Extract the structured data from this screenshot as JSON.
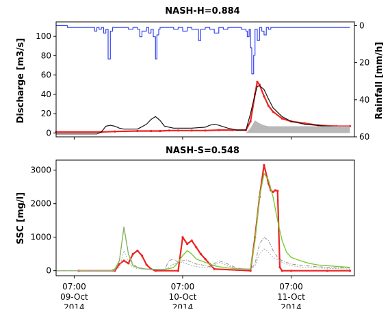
{
  "chart_data": [
    {
      "type": "line",
      "title": "NASH-H=0.884",
      "ylabel": "Discharge [m3/s]",
      "ylabel_right": "Rainfall [mm/h]",
      "ylim": [
        -4,
        115
      ],
      "yticks": [
        0,
        20,
        40,
        60,
        80,
        100
      ],
      "ylim_right": [
        60,
        -2
      ],
      "yticks_right": [
        0,
        20,
        40,
        60
      ],
      "xlim": [
        0,
        66
      ],
      "grid": false,
      "colors": {
        "rainfall": "#3344ee",
        "observed": "#ee2222",
        "simulated": "#111111",
        "baseflow": "#b8b8b8"
      },
      "series": [
        {
          "name": "",
          "role": "rainfall",
          "axis": "right",
          "x": [
            0,
            2,
            2.5,
            8,
            8.5,
            9,
            9.5,
            10,
            10.5,
            11,
            11.5,
            12,
            12.5,
            15,
            16,
            17,
            18,
            18.5,
            19,
            19.5,
            20,
            20.5,
            21,
            21.5,
            22,
            22.3,
            22.7,
            23,
            24,
            26,
            27,
            28,
            29,
            30,
            31,
            31.5,
            32,
            33,
            34,
            35,
            36,
            37,
            38,
            40,
            41,
            42,
            42.3,
            42.7,
            43,
            43.3,
            43.7,
            44,
            44.5,
            45,
            45.5,
            46,
            46.5,
            47,
            47.5,
            48,
            50,
            55,
            60,
            65
          ],
          "y": [
            0,
            0,
            1,
            1,
            3,
            1,
            2,
            1,
            4,
            2,
            18,
            3,
            1,
            1,
            2,
            1,
            2,
            6,
            3,
            3,
            1,
            4,
            2,
            6,
            18,
            5,
            2,
            1,
            1,
            2,
            1,
            3,
            1,
            2,
            2,
            8,
            2,
            1,
            2,
            4,
            1,
            2,
            1,
            1,
            2,
            3,
            6,
            2,
            12,
            26,
            16,
            2,
            8,
            1,
            3,
            5,
            1,
            2,
            1,
            1,
            1,
            1,
            1,
            1
          ]
        },
        {
          "name": "",
          "role": "observed",
          "axis": "left",
          "x": [
            0,
            10,
            13,
            18,
            21,
            23,
            25,
            27,
            30,
            33,
            36,
            39,
            42,
            43,
            44,
            44.5,
            45,
            46,
            47,
            48,
            50,
            52,
            55,
            58,
            62,
            65
          ],
          "y": [
            1,
            1,
            1.5,
            2,
            2,
            2,
            2.5,
            2.5,
            2.5,
            2.5,
            3,
            3,
            3,
            12,
            40,
            53,
            50,
            38,
            28,
            22,
            15,
            12,
            10,
            8,
            7,
            7
          ]
        },
        {
          "name": "",
          "role": "simulated",
          "axis": "left",
          "x": [
            0,
            9,
            10,
            11,
            12,
            13,
            14,
            15,
            18,
            20,
            21,
            22,
            23,
            24,
            26,
            30,
            33,
            34,
            35,
            36,
            38,
            40,
            42,
            43,
            44,
            44.5,
            45,
            46,
            47,
            48,
            50,
            52,
            55,
            60,
            65
          ],
          "y": [
            -1,
            -1,
            1,
            7,
            8,
            7,
            5,
            4,
            4,
            9,
            14,
            17,
            13,
            7,
            5,
            5,
            6,
            8,
            9,
            8,
            5,
            3,
            3,
            20,
            40,
            48,
            49,
            45,
            35,
            26,
            17,
            12,
            9,
            7,
            6
          ]
        },
        {
          "name": "",
          "role": "baseflow",
          "axis": "left",
          "x": [
            0,
            42,
            43,
            44,
            45,
            46,
            47,
            48,
            50,
            55,
            65
          ],
          "y": [
            0,
            0,
            5,
            13,
            10,
            8,
            7,
            7,
            7,
            7,
            7
          ]
        }
      ]
    },
    {
      "type": "line",
      "title": "NASH-S=0.548",
      "ylabel": "SSC [mg/l]",
      "ylim": [
        -150,
        3300
      ],
      "yticks": [
        0,
        1000,
        2000,
        3000
      ],
      "xlim": [
        0,
        66
      ],
      "xticks": [
        {
          "x": 4,
          "label": [
            "07:00",
            "09-Oct",
            "2014"
          ]
        },
        {
          "x": 28,
          "label": [
            "07:00",
            "10-Oct",
            "2014"
          ]
        },
        {
          "x": 52,
          "label": [
            "07:00",
            "11-Oct",
            "2014"
          ]
        }
      ],
      "grid": false,
      "colors": {
        "observed": "#ee2222",
        "model_a": "#77cc33",
        "model_b": "#999999",
        "model_c": "#aaaaaa"
      },
      "series": [
        {
          "name": "",
          "role": "observed",
          "x": [
            5,
            13,
            14,
            15,
            16,
            17,
            18,
            19,
            20,
            21,
            22,
            27,
            28,
            29,
            30,
            31,
            32,
            33,
            34,
            35,
            43,
            44,
            45,
            46,
            47,
            47.5,
            48,
            48.5,
            49,
            49.5,
            50,
            52,
            60,
            65
          ],
          "y": [
            0,
            0,
            200,
            300,
            220,
            500,
            600,
            450,
            180,
            50,
            0,
            0,
            1000,
            800,
            900,
            700,
            500,
            350,
            200,
            50,
            0,
            1000,
            2200,
            3150,
            2600,
            2400,
            2350,
            2400,
            2380,
            100,
            0,
            0,
            0,
            0
          ]
        },
        {
          "name": "",
          "role": "model_a",
          "x": [
            0,
            12,
            13,
            14,
            15,
            16,
            17,
            18,
            19,
            20,
            22,
            24,
            25,
            26,
            27,
            28,
            29,
            30,
            31,
            32,
            33,
            34,
            35,
            36,
            38,
            40,
            42,
            43,
            44,
            45,
            46,
            47,
            48,
            49,
            50,
            51,
            52,
            54,
            56,
            58,
            60,
            62,
            65
          ],
          "y": [
            0,
            0,
            50,
            300,
            1300,
            500,
            150,
            100,
            60,
            50,
            40,
            40,
            60,
            100,
            250,
            450,
            600,
            500,
            350,
            300,
            250,
            200,
            150,
            120,
            80,
            60,
            50,
            50,
            900,
            2200,
            2900,
            2700,
            2200,
            1500,
            900,
            550,
            400,
            300,
            220,
            170,
            150,
            130,
            100
          ]
        },
        {
          "name": "",
          "role": "model_b",
          "x": [
            0,
            13,
            14,
            15,
            16,
            17,
            18,
            20,
            22,
            24,
            25,
            26,
            27,
            28,
            29,
            30,
            31,
            32,
            33,
            34,
            36,
            38,
            40,
            42,
            43,
            44,
            45,
            46,
            47,
            48,
            49,
            50,
            52,
            55,
            60,
            65
          ],
          "y": [
            0,
            0,
            300,
            1300,
            500,
            200,
            100,
            50,
            40,
            40,
            300,
            350,
            250,
            300,
            320,
            250,
            200,
            180,
            150,
            120,
            300,
            200,
            80,
            50,
            50,
            200,
            800,
            1000,
            900,
            600,
            400,
            300,
            200,
            150,
            100,
            80
          ]
        },
        {
          "name": "",
          "role": "model_c",
          "x": [
            0,
            13,
            14,
            15,
            16,
            17,
            18,
            20,
            22,
            24,
            26,
            28,
            30,
            32,
            34,
            36,
            38,
            40,
            42,
            43,
            44,
            45,
            46,
            47,
            48,
            50,
            52,
            55,
            60,
            65
          ],
          "y": [
            0,
            0,
            100,
            600,
            250,
            100,
            60,
            40,
            30,
            30,
            200,
            250,
            150,
            100,
            80,
            250,
            150,
            60,
            40,
            40,
            150,
            500,
            650,
            550,
            400,
            250,
            150,
            100,
            70,
            50
          ]
        }
      ]
    }
  ]
}
